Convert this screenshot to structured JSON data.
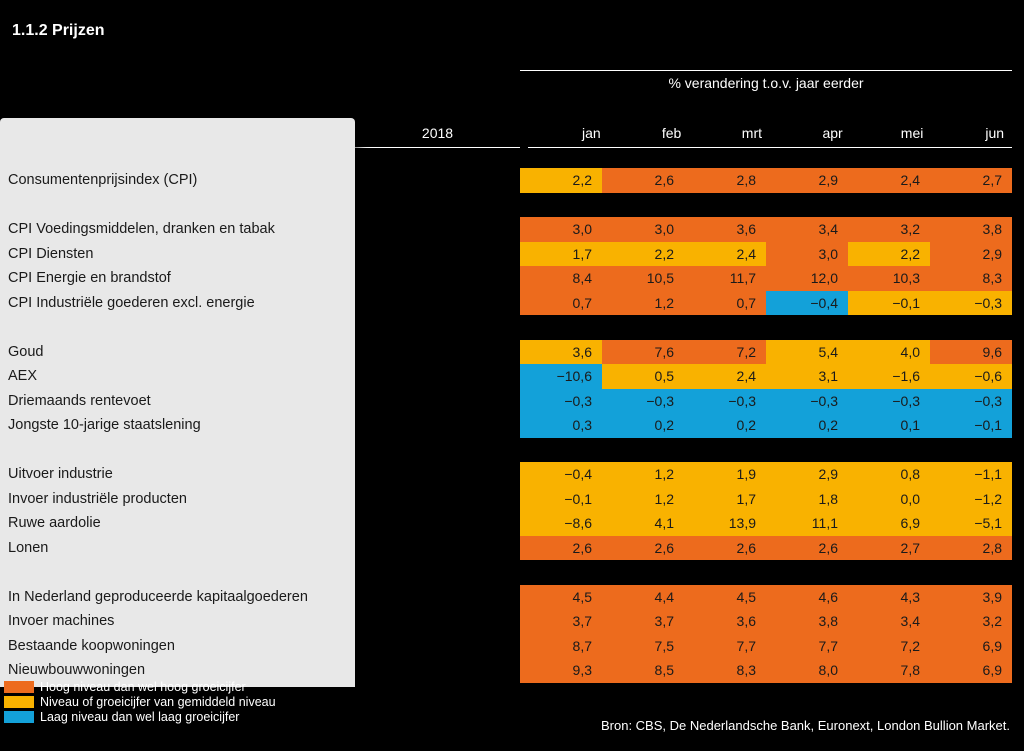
{
  "colors": {
    "orange": "#ed6b1d",
    "yellow": "#f9b200",
    "blue": "#13a1d9",
    "black": "#000000",
    "panel": "#e8e8e8",
    "text_dark": "#1a1a1a",
    "text_light": "#ffffff"
  },
  "title": "1.1.2    Prijzen",
  "header": {
    "group_label": "% verandering t.o.v. jaar eerder",
    "year_label": "2018",
    "months": [
      "jan",
      "feb",
      "mrt",
      "apr",
      "mei",
      "jun"
    ]
  },
  "rows": [
    {
      "type": "data",
      "label": "Consumentenprijsindex (CPI)",
      "cells": [
        {
          "v": "2,2",
          "c": "yellow"
        },
        {
          "v": "2,6",
          "c": "orange"
        },
        {
          "v": "2,8",
          "c": "orange"
        },
        {
          "v": "2,9",
          "c": "orange"
        },
        {
          "v": "2,4",
          "c": "orange"
        },
        {
          "v": "2,7",
          "c": "orange"
        }
      ]
    },
    {
      "type": "gap"
    },
    {
      "type": "data",
      "label": "CPI Voedingsmiddelen, dranken en tabak",
      "cells": [
        {
          "v": "3,0",
          "c": "orange"
        },
        {
          "v": "3,0",
          "c": "orange"
        },
        {
          "v": "3,6",
          "c": "orange"
        },
        {
          "v": "3,4",
          "c": "orange"
        },
        {
          "v": "3,2",
          "c": "orange"
        },
        {
          "v": "3,8",
          "c": "orange"
        }
      ]
    },
    {
      "type": "data",
      "label": "CPI Diensten",
      "cells": [
        {
          "v": "1,7",
          "c": "yellow"
        },
        {
          "v": "2,2",
          "c": "yellow"
        },
        {
          "v": "2,4",
          "c": "yellow"
        },
        {
          "v": "3,0",
          "c": "orange"
        },
        {
          "v": "2,2",
          "c": "yellow"
        },
        {
          "v": "2,9",
          "c": "orange"
        }
      ]
    },
    {
      "type": "data",
      "label": "CPI Energie en brandstof",
      "cells": [
        {
          "v": "8,4",
          "c": "orange"
        },
        {
          "v": "10,5",
          "c": "orange"
        },
        {
          "v": "11,7",
          "c": "orange"
        },
        {
          "v": "12,0",
          "c": "orange"
        },
        {
          "v": "10,3",
          "c": "orange"
        },
        {
          "v": "8,3",
          "c": "orange"
        }
      ]
    },
    {
      "type": "data",
      "label": "CPI Industriële goederen excl. energie",
      "cells": [
        {
          "v": "0,7",
          "c": "orange"
        },
        {
          "v": "1,2",
          "c": "orange"
        },
        {
          "v": "0,7",
          "c": "orange"
        },
        {
          "v": "−0,4",
          "c": "blue"
        },
        {
          "v": "−0,1",
          "c": "yellow"
        },
        {
          "v": "−0,3",
          "c": "yellow"
        }
      ]
    },
    {
      "type": "gap"
    },
    {
      "type": "data",
      "label": "Goud",
      "cells": [
        {
          "v": "3,6",
          "c": "yellow"
        },
        {
          "v": "7,6",
          "c": "orange"
        },
        {
          "v": "7,2",
          "c": "orange"
        },
        {
          "v": "5,4",
          "c": "yellow"
        },
        {
          "v": "4,0",
          "c": "yellow"
        },
        {
          "v": "9,6",
          "c": "orange"
        }
      ]
    },
    {
      "type": "data",
      "label": "AEX",
      "cells": [
        {
          "v": "−10,6",
          "c": "blue"
        },
        {
          "v": "0,5",
          "c": "yellow"
        },
        {
          "v": "2,4",
          "c": "yellow"
        },
        {
          "v": "3,1",
          "c": "yellow"
        },
        {
          "v": "−1,6",
          "c": "yellow"
        },
        {
          "v": "−0,6",
          "c": "yellow"
        }
      ]
    },
    {
      "type": "data",
      "label": "Driemaands rentevoet",
      "cells": [
        {
          "v": "−0,3",
          "c": "blue"
        },
        {
          "v": "−0,3",
          "c": "blue"
        },
        {
          "v": "−0,3",
          "c": "blue"
        },
        {
          "v": "−0,3",
          "c": "blue"
        },
        {
          "v": "−0,3",
          "c": "blue"
        },
        {
          "v": "−0,3",
          "c": "blue"
        }
      ]
    },
    {
      "type": "data",
      "label": "Jongste 10-jarige staatslening",
      "cells": [
        {
          "v": "0,3",
          "c": "blue"
        },
        {
          "v": "0,2",
          "c": "blue"
        },
        {
          "v": "0,2",
          "c": "blue"
        },
        {
          "v": "0,2",
          "c": "blue"
        },
        {
          "v": "0,1",
          "c": "blue"
        },
        {
          "v": "−0,1",
          "c": "blue"
        }
      ]
    },
    {
      "type": "gap"
    },
    {
      "type": "data",
      "label": "Uitvoer industrie",
      "cells": [
        {
          "v": "−0,4",
          "c": "yellow"
        },
        {
          "v": "1,2",
          "c": "yellow"
        },
        {
          "v": "1,9",
          "c": "yellow"
        },
        {
          "v": "2,9",
          "c": "yellow"
        },
        {
          "v": "0,8",
          "c": "yellow"
        },
        {
          "v": "−1,1",
          "c": "yellow"
        }
      ]
    },
    {
      "type": "data",
      "label": "Invoer industriële producten",
      "cells": [
        {
          "v": "−0,1",
          "c": "yellow"
        },
        {
          "v": "1,2",
          "c": "yellow"
        },
        {
          "v": "1,7",
          "c": "yellow"
        },
        {
          "v": "1,8",
          "c": "yellow"
        },
        {
          "v": "0,0",
          "c": "yellow"
        },
        {
          "v": "−1,2",
          "c": "yellow"
        }
      ]
    },
    {
      "type": "data",
      "label": "Ruwe aardolie",
      "cells": [
        {
          "v": "−8,6",
          "c": "yellow"
        },
        {
          "v": "4,1",
          "c": "yellow"
        },
        {
          "v": "13,9",
          "c": "yellow"
        },
        {
          "v": "11,1",
          "c": "yellow"
        },
        {
          "v": "6,9",
          "c": "yellow"
        },
        {
          "v": "−5,1",
          "c": "yellow"
        }
      ]
    },
    {
      "type": "data",
      "label": "Lonen",
      "cells": [
        {
          "v": "2,6",
          "c": "orange"
        },
        {
          "v": "2,6",
          "c": "orange"
        },
        {
          "v": "2,6",
          "c": "orange"
        },
        {
          "v": "2,6",
          "c": "orange"
        },
        {
          "v": "2,7",
          "c": "orange"
        },
        {
          "v": "2,8",
          "c": "orange"
        }
      ]
    },
    {
      "type": "gap"
    },
    {
      "type": "data",
      "label": "In Nederland geproduceerde kapitaalgoederen",
      "cells": [
        {
          "v": "4,5",
          "c": "orange"
        },
        {
          "v": "4,4",
          "c": "orange"
        },
        {
          "v": "4,5",
          "c": "orange"
        },
        {
          "v": "4,6",
          "c": "orange"
        },
        {
          "v": "4,3",
          "c": "orange"
        },
        {
          "v": "3,9",
          "c": "orange"
        }
      ]
    },
    {
      "type": "data",
      "label": "Invoer machines",
      "cells": [
        {
          "v": "3,7",
          "c": "orange"
        },
        {
          "v": "3,7",
          "c": "orange"
        },
        {
          "v": "3,6",
          "c": "orange"
        },
        {
          "v": "3,8",
          "c": "orange"
        },
        {
          "v": "3,4",
          "c": "orange"
        },
        {
          "v": "3,2",
          "c": "orange"
        }
      ]
    },
    {
      "type": "data",
      "label": "Bestaande koopwoningen",
      "cells": [
        {
          "v": "8,7",
          "c": "orange"
        },
        {
          "v": "7,5",
          "c": "orange"
        },
        {
          "v": "7,7",
          "c": "orange"
        },
        {
          "v": "7,7",
          "c": "orange"
        },
        {
          "v": "7,2",
          "c": "orange"
        },
        {
          "v": "6,9",
          "c": "orange"
        }
      ]
    },
    {
      "type": "data",
      "label": "Nieuwbouwwoningen",
      "cells": [
        {
          "v": "9,3",
          "c": "orange"
        },
        {
          "v": "8,5",
          "c": "orange"
        },
        {
          "v": "8,3",
          "c": "orange"
        },
        {
          "v": "8,0",
          "c": "orange"
        },
        {
          "v": "7,8",
          "c": "orange"
        },
        {
          "v": "6,9",
          "c": "orange"
        }
      ]
    }
  ],
  "legend": [
    {
      "color": "orange",
      "label": "Hoog niveau dan wel hoog groeicijfer"
    },
    {
      "color": "yellow",
      "label": "Niveau of groeicijfer van gemiddeld niveau"
    },
    {
      "color": "blue",
      "label": "Laag niveau dan wel laag groeicijfer"
    }
  ],
  "source": "Bron: CBS, De Nederlandsche Bank, Euronext, London Bullion Market."
}
